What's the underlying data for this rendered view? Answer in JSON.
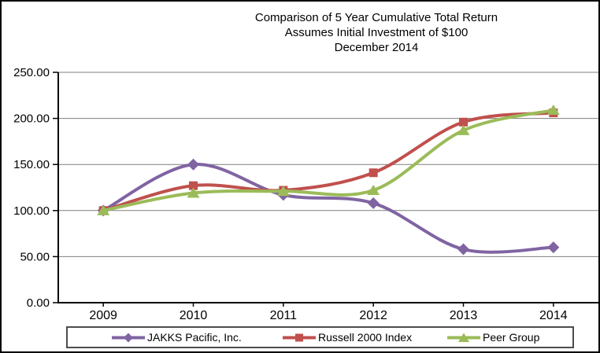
{
  "chart_data": {
    "type": "line",
    "title_lines": [
      "Comparison of 5 Year Cumulative Total Return",
      "Assumes Initial Investment of $100",
      "December 2014"
    ],
    "categories": [
      "2009",
      "2010",
      "2011",
      "2012",
      "2013",
      "2014"
    ],
    "series": [
      {
        "name": "JAKKS Pacific, Inc.",
        "color": "#8064A2",
        "marker": "diamond",
        "values": [
          100.0,
          150.0,
          117.0,
          108.0,
          58.0,
          60.0
        ]
      },
      {
        "name": "Russell 2000 Index",
        "color": "#C0504D",
        "marker": "square",
        "values": [
          100.0,
          127.0,
          122.0,
          141.0,
          196.0,
          206.0
        ]
      },
      {
        "name": "Peer Group",
        "color": "#9BBB59",
        "marker": "triangle",
        "values": [
          100.0,
          119.0,
          121.0,
          122.0,
          187.0,
          209.0
        ]
      }
    ],
    "y_axis": {
      "min": 0,
      "max": 250,
      "step": 50,
      "tick_labels": [
        "0.00",
        "50.00",
        "100.00",
        "150.00",
        "200.00",
        "250.00"
      ]
    },
    "x_axis": {
      "tick_labels": [
        "2009",
        "2010",
        "2011",
        "2012",
        "2013",
        "2014"
      ]
    },
    "grid": true,
    "smoothed": true,
    "legend_position": "bottom",
    "style": {
      "grid_color": "#7f7f7f",
      "axis_color": "#000000",
      "text_color": "#000000",
      "background": "#FFFFFF",
      "legend_border": "#4d4d4d"
    }
  }
}
